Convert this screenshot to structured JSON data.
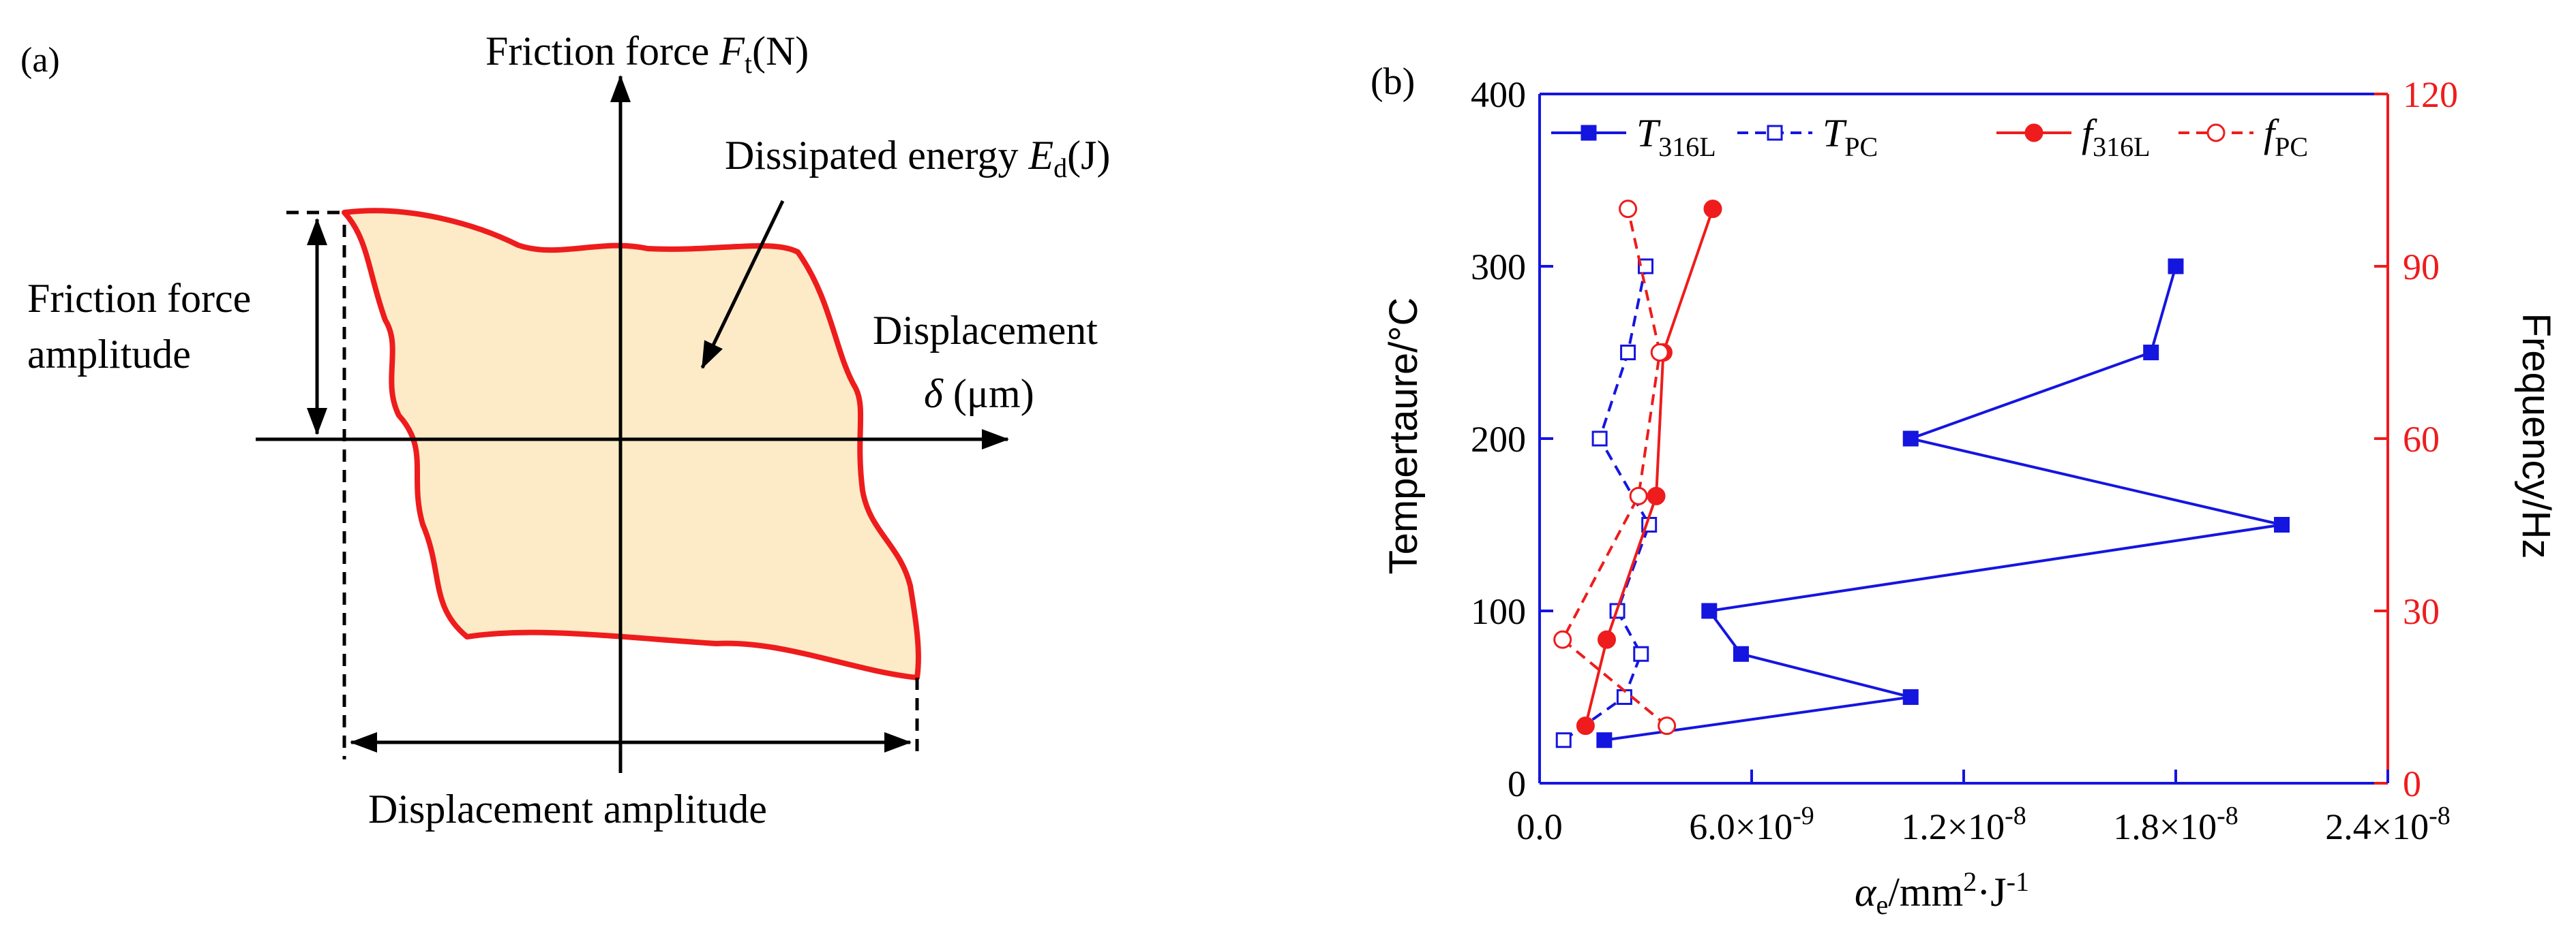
{
  "panel_a": {
    "label": "(a)",
    "y_axis_label": "Friction force ",
    "y_axis_symbol": "F",
    "y_axis_sub": "t",
    "y_axis_unit": "(N)",
    "x_axis_label_1": "Displacement",
    "x_axis_symbol": "δ",
    "x_axis_unit": " (μm)",
    "energy_label": "Dissipated energy ",
    "energy_symbol": "E",
    "energy_sub": "d",
    "energy_unit": "(J)",
    "force_amp_line1": "Friction force",
    "force_amp_line2": "amplitude",
    "disp_amp_label": "Displacement amplitude",
    "colors": {
      "loop_fill": "#fdebc8",
      "loop_stroke": "#ee1c1c"
    }
  },
  "panel_b": {
    "label": "(b)"
  },
  "chart_data": {
    "type": "line",
    "title": "",
    "xlabel_symbol": "α",
    "xlabel_sub": "e",
    "xlabel_unit": "/mm",
    "xlabel_sup": "2",
    "xlabel_unit2": "·J",
    "xlabel_sup2": "-1",
    "ylabel": "Tempertaure/°C",
    "y2label": "Frequency/Hz",
    "xlim": [
      0,
      2.4e-08
    ],
    "ylim": [
      0,
      400
    ],
    "y2lim": [
      0,
      120
    ],
    "x_ticks": [
      {
        "value": 0,
        "label": "0.0"
      },
      {
        "value": 6e-09,
        "label": "6.0×10",
        "exp": "-9"
      },
      {
        "value": 1.2e-08,
        "label": "1.2×10",
        "exp": "-8"
      },
      {
        "value": 1.8e-08,
        "label": "1.8×10",
        "exp": "-8"
      },
      {
        "value": 2.4e-08,
        "label": "2.4×10",
        "exp": "-8"
      }
    ],
    "y_ticks": [
      "0",
      "100",
      "200",
      "300",
      "400"
    ],
    "y2_ticks": [
      "0",
      "30",
      "60",
      "90",
      "120"
    ],
    "series": [
      {
        "name": "T",
        "sub": "316L",
        "axis": "left",
        "color": "#1515e0",
        "dash": false,
        "marker": "square-filled",
        "points": [
          [
            1.83e-09,
            25
          ],
          [
            1.05e-08,
            50
          ],
          [
            5.7e-09,
            75
          ],
          [
            4.8e-09,
            100
          ],
          [
            2.1e-08,
            150
          ],
          [
            1.05e-08,
            200
          ],
          [
            1.73e-08,
            250
          ],
          [
            1.8e-08,
            300
          ]
        ]
      },
      {
        "name": "T",
        "sub": "PC",
        "axis": "left",
        "color": "#1515e0",
        "dash": true,
        "marker": "square-open",
        "points": [
          [
            6.8e-10,
            25
          ],
          [
            2.4e-09,
            50
          ],
          [
            2.87e-09,
            75
          ],
          [
            2.2e-09,
            100
          ],
          [
            3.1e-09,
            150
          ],
          [
            1.7e-09,
            200
          ],
          [
            2.5e-09,
            250
          ],
          [
            3e-09,
            300
          ]
        ]
      },
      {
        "name": "f",
        "sub": "316L",
        "axis": "right",
        "color": "#ee1c1c",
        "dash": false,
        "marker": "circle-filled",
        "points": [
          [
            1.3e-09,
            10
          ],
          [
            1.9e-09,
            25
          ],
          [
            3.3e-09,
            50
          ],
          [
            3.5e-09,
            75
          ],
          [
            4.9e-09,
            100
          ]
        ]
      },
      {
        "name": "f",
        "sub": "PC",
        "axis": "right",
        "color": "#ee1c1c",
        "dash": true,
        "marker": "circle-open",
        "points": [
          [
            3.6e-09,
            10
          ],
          [
            6.5e-10,
            25
          ],
          [
            2.8e-09,
            50
          ],
          [
            3.4e-09,
            75
          ],
          [
            2.5e-09,
            100
          ]
        ]
      }
    ],
    "axis_colors": {
      "left": "#1515e0",
      "right": "#ee1c1c",
      "bottom": "#1515e0"
    }
  }
}
